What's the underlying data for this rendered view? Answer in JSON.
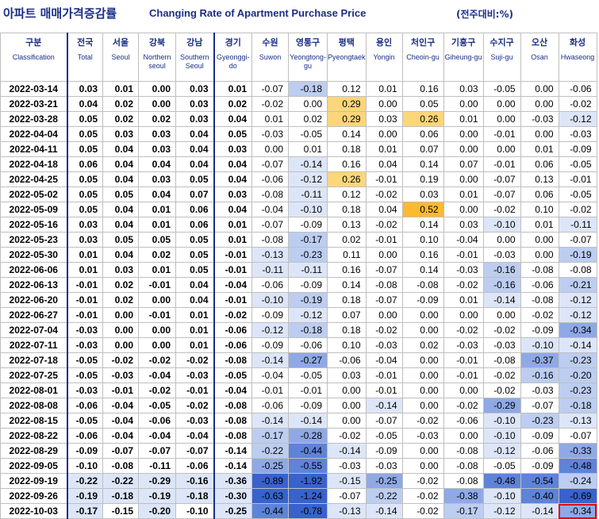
{
  "title": {
    "korean": "아파트 매매가격증감률",
    "english": "Changing Rate of Apartment Purchase Price",
    "unit": "(전주대비:%)"
  },
  "columns": [
    {
      "kr": "구분",
      "en": "Classification"
    },
    {
      "kr": "전국",
      "en": "Total"
    },
    {
      "kr": "서울",
      "en": "Seoul"
    },
    {
      "kr": "강북",
      "en": "Northern seoul"
    },
    {
      "kr": "강남",
      "en": "Southern Seoul"
    },
    {
      "kr": "경기",
      "en": "Gyeonggi-do"
    },
    {
      "kr": "수원",
      "en": "Suwon"
    },
    {
      "kr": "영통구",
      "en": "Yeongtong-gu"
    },
    {
      "kr": "평택",
      "en": "Pyeongtaek"
    },
    {
      "kr": "용인",
      "en": "Yongin"
    },
    {
      "kr": "처인구",
      "en": "Cheoin-gu"
    },
    {
      "kr": "기흥구",
      "en": "Giheung-gu"
    },
    {
      "kr": "수지구",
      "en": "Suji-gu"
    },
    {
      "kr": "오산",
      "en": "Osan"
    },
    {
      "kr": "화성",
      "en": "Hwaseong"
    }
  ],
  "colors": {
    "pos_light": "#fde9a9",
    "pos_mid": "#fcd67a",
    "pos_strong": "#fdb92f",
    "neg_1": "#dde6f8",
    "neg_2": "#bccdf0",
    "neg_3": "#8fa9e6",
    "neg_4": "#5e83d9",
    "neg_5": "#3862cc",
    "highlight_border": "#e00000"
  },
  "rows": [
    {
      "date": "2022-03-14",
      "v": [
        "0.03",
        "0.01",
        "0.00",
        "0.03",
        "0.01",
        "-0.07",
        "-0.18",
        "0.12",
        "0.01",
        "0.16",
        "0.03",
        "-0.05",
        "0.00",
        "-0.06"
      ]
    },
    {
      "date": "2022-03-21",
      "v": [
        "0.04",
        "0.02",
        "0.00",
        "0.03",
        "0.02",
        "-0.02",
        "0.00",
        "0.29",
        "0.00",
        "0.05",
        "0.00",
        "0.00",
        "0.00",
        "-0.02"
      ]
    },
    {
      "date": "2022-03-28",
      "v": [
        "0.05",
        "0.02",
        "0.02",
        "0.03",
        "0.04",
        "0.01",
        "0.02",
        "0.29",
        "0.03",
        "0.26",
        "0.01",
        "0.00",
        "-0.03",
        "-0.12"
      ]
    },
    {
      "date": "2022-04-04",
      "v": [
        "0.05",
        "0.03",
        "0.03",
        "0.04",
        "0.05",
        "-0.03",
        "-0.05",
        "0.14",
        "0.00",
        "0.06",
        "0.00",
        "-0.01",
        "0.00",
        "-0.03"
      ]
    },
    {
      "date": "2022-04-11",
      "v": [
        "0.05",
        "0.04",
        "0.03",
        "0.04",
        "0.03",
        "0.00",
        "0.01",
        "0.18",
        "0.01",
        "0.07",
        "0.00",
        "0.00",
        "0.01",
        "-0.09"
      ]
    },
    {
      "date": "2022-04-18",
      "v": [
        "0.06",
        "0.04",
        "0.04",
        "0.04",
        "0.04",
        "-0.07",
        "-0.14",
        "0.16",
        "0.04",
        "0.14",
        "0.07",
        "-0.01",
        "0.06",
        "-0.05"
      ]
    },
    {
      "date": "2022-04-25",
      "v": [
        "0.05",
        "0.04",
        "0.03",
        "0.05",
        "0.04",
        "-0.06",
        "-0.12",
        "0.26",
        "-0.01",
        "0.19",
        "0.00",
        "-0.07",
        "0.13",
        "-0.01"
      ]
    },
    {
      "date": "2022-05-02",
      "v": [
        "0.05",
        "0.05",
        "0.04",
        "0.07",
        "0.03",
        "-0.08",
        "-0.11",
        "0.12",
        "-0.02",
        "0.03",
        "0.01",
        "-0.07",
        "0.06",
        "-0.05"
      ]
    },
    {
      "date": "2022-05-09",
      "v": [
        "0.05",
        "0.04",
        "0.01",
        "0.06",
        "0.04",
        "-0.04",
        "-0.10",
        "0.18",
        "0.04",
        "0.52",
        "0.00",
        "-0.02",
        "0.10",
        "-0.02"
      ]
    },
    {
      "date": "2022-05-16",
      "v": [
        "0.03",
        "0.04",
        "0.01",
        "0.06",
        "0.01",
        "-0.07",
        "-0.09",
        "0.13",
        "-0.02",
        "0.14",
        "0.03",
        "-0.10",
        "0.01",
        "-0.11"
      ]
    },
    {
      "date": "2022-05-23",
      "v": [
        "0.03",
        "0.05",
        "0.05",
        "0.05",
        "0.01",
        "-0.08",
        "-0.17",
        "0.02",
        "-0.01",
        "0.10",
        "-0.04",
        "0.00",
        "0.00",
        "-0.07"
      ]
    },
    {
      "date": "2022-05-30",
      "v": [
        "0.01",
        "0.04",
        "0.02",
        "0.05",
        "-0.01",
        "-0.13",
        "-0.23",
        "0.11",
        "0.00",
        "0.16",
        "-0.01",
        "-0.03",
        "0.00",
        "-0.19"
      ]
    },
    {
      "date": "2022-06-06",
      "v": [
        "0.01",
        "0.03",
        "0.01",
        "0.05",
        "-0.01",
        "-0.11",
        "-0.11",
        "0.16",
        "-0.07",
        "0.14",
        "-0.03",
        "-0.16",
        "-0.08",
        "-0.08"
      ]
    },
    {
      "date": "2022-06-13",
      "v": [
        "-0.01",
        "0.02",
        "-0.01",
        "0.04",
        "-0.04",
        "-0.06",
        "-0.09",
        "0.14",
        "-0.08",
        "-0.08",
        "-0.02",
        "-0.16",
        "-0.06",
        "-0.21"
      ]
    },
    {
      "date": "2022-06-20",
      "v": [
        "-0.01",
        "0.02",
        "0.00",
        "0.04",
        "-0.01",
        "-0.10",
        "-0.19",
        "0.18",
        "-0.07",
        "-0.09",
        "0.01",
        "-0.14",
        "-0.08",
        "-0.12"
      ]
    },
    {
      "date": "2022-06-27",
      "v": [
        "-0.01",
        "0.00",
        "-0.01",
        "0.01",
        "-0.02",
        "-0.09",
        "-0.12",
        "0.07",
        "0.00",
        "0.00",
        "0.00",
        "0.00",
        "-0.02",
        "-0.12"
      ]
    },
    {
      "date": "2022-07-04",
      "v": [
        "-0.03",
        "0.00",
        "0.00",
        "0.01",
        "-0.06",
        "-0.12",
        "-0.18",
        "0.18",
        "-0.02",
        "0.00",
        "-0.02",
        "-0.02",
        "-0.09",
        "-0.34"
      ]
    },
    {
      "date": "2022-07-11",
      "v": [
        "-0.03",
        "0.00",
        "0.00",
        "0.01",
        "-0.06",
        "-0.09",
        "-0.06",
        "0.10",
        "-0.03",
        "0.02",
        "-0.03",
        "-0.03",
        "-0.10",
        "-0.14"
      ]
    },
    {
      "date": "2022-07-18",
      "v": [
        "-0.05",
        "-0.02",
        "-0.02",
        "-0.02",
        "-0.08",
        "-0.14",
        "-0.27",
        "-0.06",
        "-0.04",
        "0.00",
        "-0.01",
        "-0.08",
        "-0.37",
        "-0.23"
      ]
    },
    {
      "date": "2022-07-25",
      "v": [
        "-0.05",
        "-0.03",
        "-0.04",
        "-0.03",
        "-0.05",
        "-0.04",
        "-0.05",
        "0.03",
        "-0.01",
        "0.00",
        "-0.01",
        "-0.02",
        "-0.16",
        "-0.20"
      ]
    },
    {
      "date": "2022-08-01",
      "v": [
        "-0.03",
        "-0.01",
        "-0.02",
        "-0.01",
        "-0.04",
        "-0.01",
        "-0.01",
        "0.00",
        "-0.01",
        "0.00",
        "0.00",
        "-0.02",
        "-0.03",
        "-0.23"
      ]
    },
    {
      "date": "2022-08-08",
      "v": [
        "-0.06",
        "-0.04",
        "-0.05",
        "-0.02",
        "-0.08",
        "-0.06",
        "-0.09",
        "0.00",
        "-0.14",
        "0.00",
        "-0.02",
        "-0.29",
        "-0.07",
        "-0.18"
      ]
    },
    {
      "date": "2022-08-15",
      "v": [
        "-0.05",
        "-0.04",
        "-0.06",
        "-0.03",
        "-0.08",
        "-0.14",
        "-0.14",
        "0.00",
        "-0.07",
        "-0.02",
        "-0.06",
        "-0.10",
        "-0.23",
        "-0.13"
      ]
    },
    {
      "date": "2022-08-22",
      "v": [
        "-0.06",
        "-0.04",
        "-0.04",
        "-0.04",
        "-0.08",
        "-0.17",
        "-0.28",
        "-0.02",
        "-0.05",
        "-0.03",
        "0.00",
        "-0.10",
        "-0.09",
        "-0.07"
      ]
    },
    {
      "date": "2022-08-29",
      "v": [
        "-0.09",
        "-0.07",
        "-0.07",
        "-0.07",
        "-0.14",
        "-0.22",
        "-0.44",
        "-0.14",
        "-0.09",
        "0.00",
        "-0.08",
        "-0.12",
        "-0.06",
        "-0.33"
      ]
    },
    {
      "date": "2022-09-05",
      "v": [
        "-0.10",
        "-0.08",
        "-0.11",
        "-0.06",
        "-0.14",
        "-0.25",
        "-0.55",
        "-0.03",
        "-0.03",
        "0.00",
        "-0.08",
        "-0.05",
        "-0.09",
        "-0.48"
      ]
    },
    {
      "date": "2022-09-19",
      "v": [
        "-0.22",
        "-0.22",
        "-0.29",
        "-0.16",
        "-0.36",
        "-0.89",
        "-1.92",
        "-0.15",
        "-0.25",
        "-0.02",
        "-0.08",
        "-0.48",
        "-0.54",
        "-0.24"
      ]
    },
    {
      "date": "2022-09-26",
      "v": [
        "-0.19",
        "-0.18",
        "-0.19",
        "-0.18",
        "-0.30",
        "-0.63",
        "-1.24",
        "-0.07",
        "-0.22",
        "-0.02",
        "-0.38",
        "-0.10",
        "-0.40",
        "-0.69"
      ]
    },
    {
      "date": "2022-10-03",
      "v": [
        "-0.17",
        "-0.15",
        "-0.20",
        "-0.10",
        "-0.25",
        "-0.44",
        "-0.78",
        "-0.13",
        "-0.14",
        "-0.02",
        "-0.17",
        "-0.12",
        "-0.14",
        "-0.34"
      ]
    }
  ]
}
